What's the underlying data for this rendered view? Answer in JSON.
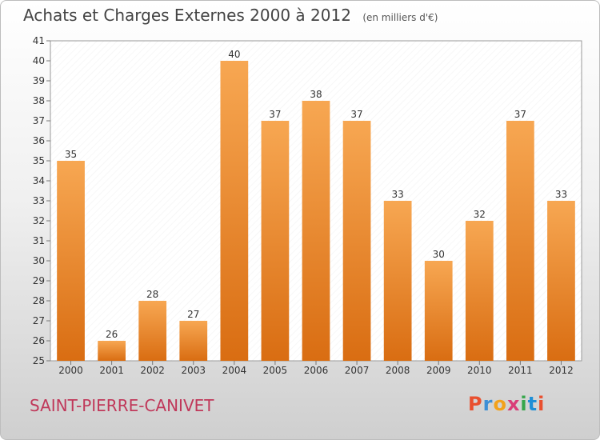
{
  "header": {
    "title": "Achats et Charges Externes 2000 à 2012",
    "subtitle": "(en milliers d'€)"
  },
  "footer": {
    "place": "SAINT-PIERRE-CANIVET",
    "brand": "Proxiti"
  },
  "colors": {
    "bar_top": "#f7a752",
    "bar_bottom": "#d96d12",
    "plot_bg": "#ffffff",
    "brand_letters": [
      "#e9502f",
      "#3c8fd6",
      "#f2a21c",
      "#d93c78",
      "#36a64a",
      "#1f8fd6",
      "#e9502f"
    ]
  },
  "chart_data": {
    "type": "bar",
    "categories": [
      "2000",
      "2001",
      "2002",
      "2003",
      "2004",
      "2005",
      "2006",
      "2007",
      "2008",
      "2009",
      "2010",
      "2011",
      "2012"
    ],
    "values": [
      35,
      26,
      28,
      27,
      40,
      37,
      38,
      37,
      33,
      30,
      32,
      37,
      33
    ],
    "data_labels": [
      "35",
      "26",
      "28",
      "27",
      "40",
      "37",
      "38",
      "37",
      "33",
      "30",
      "32",
      "37",
      "33"
    ],
    "yticks": [
      "25",
      "26",
      "27",
      "28",
      "29",
      "30",
      "31",
      "32",
      "33",
      "34",
      "35",
      "36",
      "37",
      "38",
      "39",
      "40",
      "41"
    ],
    "ylim": [
      25,
      41
    ],
    "grid": false,
    "legend": "none"
  }
}
